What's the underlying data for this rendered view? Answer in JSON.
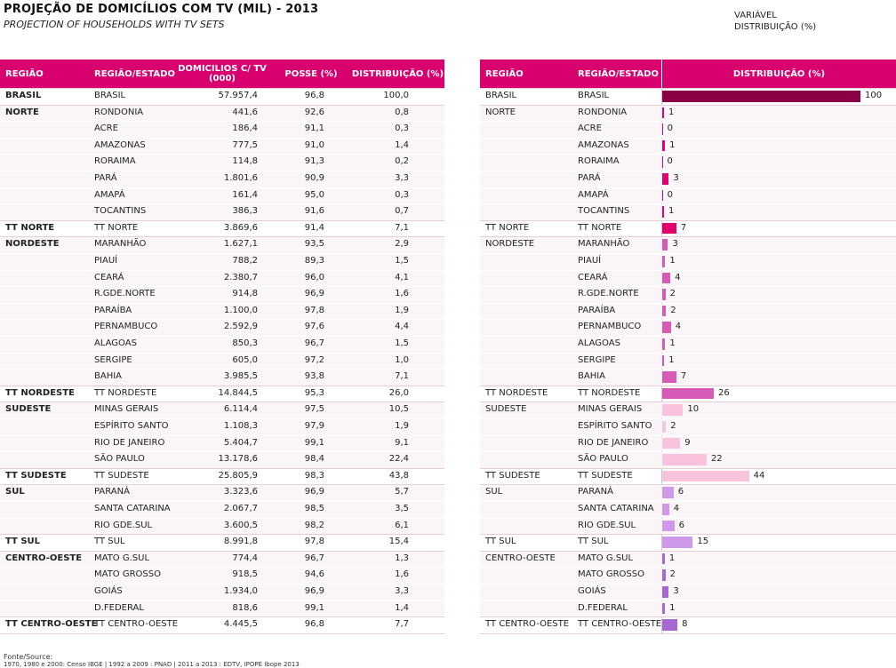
{
  "header": {
    "title": "PROJEÇÃO DE DOMICÍLIOS COM TV (MIL) - 2013",
    "subtitle": "PROJECTION OF HOUSEHOLDS WITH TV SETS",
    "variable_label": "VARIÁVEL",
    "variable_value": "DISTRIBUIÇÃO (%)"
  },
  "table": {
    "columns": [
      "REGIÃO",
      "REGIÃO/ESTADO",
      "DOMICILIOS C/ TV\n(000)",
      "POSSE (%)",
      "DISTRIBUIÇÃO (%)"
    ],
    "right_columns": [
      "REGIÃO",
      "REGIÃO/ESTADO",
      "DISTRIBUIÇÃO (%)"
    ]
  },
  "chart_data": {
    "type": "bar",
    "orientation": "horizontal",
    "title": "PROJEÇÃO DE DOMICÍLIOS COM TV (MIL) - 2013",
    "subtitle": "PROJECTION OF HOUSEHOLDS WITH TV SETS",
    "value_label": "DISTRIBUIÇÃO (%)",
    "xlim": [
      0,
      100
    ],
    "rows": [
      {
        "region": "BRASIL",
        "state": "BRASIL",
        "households": "57.957,4",
        "ownership": "96,8",
        "distribution": "100,0",
        "bar_value": 100,
        "bar_label": "100",
        "color": "#8a0045",
        "total": true,
        "start": true
      },
      {
        "region": "NORTE",
        "state": "RONDONIA",
        "households": "441,6",
        "ownership": "92,6",
        "distribution": "0,8",
        "bar_value": 0.8,
        "bar_label": "1",
        "color": "#e0006e",
        "start": true
      },
      {
        "region": "",
        "state": "ACRE",
        "households": "186,4",
        "ownership": "91,1",
        "distribution": "0,3",
        "bar_value": 0.3,
        "bar_label": "0",
        "color": "#e0006e"
      },
      {
        "region": "",
        "state": "AMAZONAS",
        "households": "777,5",
        "ownership": "91,0",
        "distribution": "1,4",
        "bar_value": 1.4,
        "bar_label": "1",
        "color": "#e0006e"
      },
      {
        "region": "",
        "state": "RORAIMA",
        "households": "114,8",
        "ownership": "91,3",
        "distribution": "0,2",
        "bar_value": 0.2,
        "bar_label": "0",
        "color": "#e0006e"
      },
      {
        "region": "",
        "state": "PARÁ",
        "households": "1.801,6",
        "ownership": "90,9",
        "distribution": "3,3",
        "bar_value": 3.3,
        "bar_label": "3",
        "color": "#e0006e"
      },
      {
        "region": "",
        "state": "AMAPÁ",
        "households": "161,4",
        "ownership": "95,0",
        "distribution": "0,3",
        "bar_value": 0.3,
        "bar_label": "0",
        "color": "#e0006e"
      },
      {
        "region": "",
        "state": "TOCANTINS",
        "households": "386,3",
        "ownership": "91,6",
        "distribution": "0,7",
        "bar_value": 0.7,
        "bar_label": "1",
        "color": "#e0006e"
      },
      {
        "region": "TT NORTE",
        "state": "TT NORTE",
        "households": "3.869,6",
        "ownership": "91,4",
        "distribution": "7,1",
        "bar_value": 7.1,
        "bar_label": "7",
        "color": "#e0006e",
        "total": true,
        "start": true
      },
      {
        "region": "NORDESTE",
        "state": "MARANHÃO",
        "households": "1.627,1",
        "ownership": "93,5",
        "distribution": "2,9",
        "bar_value": 2.9,
        "bar_label": "3",
        "color": "#d65ab6",
        "start": true
      },
      {
        "region": "",
        "state": "PIAUÍ",
        "households": "788,2",
        "ownership": "89,3",
        "distribution": "1,5",
        "bar_value": 1.5,
        "bar_label": "1",
        "color": "#d65ab6"
      },
      {
        "region": "",
        "state": "CEARÁ",
        "households": "2.380,7",
        "ownership": "96,0",
        "distribution": "4,1",
        "bar_value": 4.1,
        "bar_label": "4",
        "color": "#d65ab6"
      },
      {
        "region": "",
        "state": "R.GDE.NORTE",
        "households": "914,8",
        "ownership": "96,9",
        "distribution": "1,6",
        "bar_value": 1.6,
        "bar_label": "2",
        "color": "#d65ab6"
      },
      {
        "region": "",
        "state": "PARAÍBA",
        "households": "1.100,0",
        "ownership": "97,8",
        "distribution": "1,9",
        "bar_value": 1.9,
        "bar_label": "2",
        "color": "#d65ab6"
      },
      {
        "region": "",
        "state": "PERNAMBUCO",
        "households": "2.592,9",
        "ownership": "97,6",
        "distribution": "4,4",
        "bar_value": 4.4,
        "bar_label": "4",
        "color": "#d65ab6"
      },
      {
        "region": "",
        "state": "ALAGOAS",
        "households": "850,3",
        "ownership": "96,7",
        "distribution": "1,5",
        "bar_value": 1.5,
        "bar_label": "1",
        "color": "#d65ab6"
      },
      {
        "region": "",
        "state": "SERGIPE",
        "households": "605,0",
        "ownership": "97,2",
        "distribution": "1,0",
        "bar_value": 1.0,
        "bar_label": "1",
        "color": "#d65ab6"
      },
      {
        "region": "",
        "state": "BAHIA",
        "households": "3.985,5",
        "ownership": "93,8",
        "distribution": "7,1",
        "bar_value": 7.1,
        "bar_label": "7",
        "color": "#d65ab6"
      },
      {
        "region": "TT NORDESTE",
        "state": "TT NORDESTE",
        "households": "14.844,5",
        "ownership": "95,3",
        "distribution": "26,0",
        "bar_value": 26.0,
        "bar_label": "26",
        "color": "#d65ab6",
        "total": true,
        "start": true
      },
      {
        "region": "SUDESTE",
        "state": "MINAS GERAIS",
        "households": "6.114,4",
        "ownership": "97,5",
        "distribution": "10,5",
        "bar_value": 10.5,
        "bar_label": "10",
        "color": "#f9c2dd",
        "start": true
      },
      {
        "region": "",
        "state": "ESPÍRITO SANTO",
        "households": "1.108,3",
        "ownership": "97,9",
        "distribution": "1,9",
        "bar_value": 1.9,
        "bar_label": "2",
        "color": "#f9c2dd"
      },
      {
        "region": "",
        "state": "RIO DE JANEIRO",
        "households": "5.404,7",
        "ownership": "99,1",
        "distribution": "9,1",
        "bar_value": 9.1,
        "bar_label": "9",
        "color": "#f9c2dd"
      },
      {
        "region": "",
        "state": "SÃO PAULO",
        "households": "13.178,6",
        "ownership": "98,4",
        "distribution": "22,4",
        "bar_value": 22.4,
        "bar_label": "22",
        "color": "#f9c2dd"
      },
      {
        "region": "TT SUDESTE",
        "state": "TT SUDESTE",
        "households": "25.805,9",
        "ownership": "98,3",
        "distribution": "43,8",
        "bar_value": 43.8,
        "bar_label": "44",
        "color": "#f9c2dd",
        "total": true,
        "start": true
      },
      {
        "region": "SUL",
        "state": "PARANÁ",
        "households": "3.323,6",
        "ownership": "96,9",
        "distribution": "5,7",
        "bar_value": 5.7,
        "bar_label": "6",
        "color": "#cd99e8",
        "start": true
      },
      {
        "region": "",
        "state": "SANTA CATARINA",
        "households": "2.067,7",
        "ownership": "98,5",
        "distribution": "3,5",
        "bar_value": 3.5,
        "bar_label": "4",
        "color": "#cd99e8"
      },
      {
        "region": "",
        "state": "RIO GDE.SUL",
        "households": "3.600,5",
        "ownership": "98,2",
        "distribution": "6,1",
        "bar_value": 6.1,
        "bar_label": "6",
        "color": "#cd99e8"
      },
      {
        "region": "TT SUL",
        "state": "TT SUL",
        "households": "8.991,8",
        "ownership": "97,8",
        "distribution": "15,4",
        "bar_value": 15.4,
        "bar_label": "15",
        "color": "#cd99e8",
        "total": true,
        "start": true
      },
      {
        "region": "CENTRO-OESTE",
        "state": "MATO G.SUL",
        "households": "774,4",
        "ownership": "96,7",
        "distribution": "1,3",
        "bar_value": 1.3,
        "bar_label": "1",
        "color": "#a768d4",
        "start": true
      },
      {
        "region": "",
        "state": "MATO GROSSO",
        "households": "918,5",
        "ownership": "94,6",
        "distribution": "1,6",
        "bar_value": 1.6,
        "bar_label": "2",
        "color": "#a768d4"
      },
      {
        "region": "",
        "state": "GOIÁS",
        "households": "1.934,0",
        "ownership": "96,9",
        "distribution": "3,3",
        "bar_value": 3.3,
        "bar_label": "3",
        "color": "#a768d4"
      },
      {
        "region": "",
        "state": "D.FEDERAL",
        "households": "818,6",
        "ownership": "99,1",
        "distribution": "1,4",
        "bar_value": 1.4,
        "bar_label": "1",
        "color": "#a768d4"
      },
      {
        "region": "TT CENTRO-OESTE",
        "state": "TT CENTRO-OESTE",
        "households": "4.445,5",
        "ownership": "96,8",
        "distribution": "7,7",
        "bar_value": 7.7,
        "bar_label": "8",
        "color": "#a768d4",
        "total": true,
        "start": true
      }
    ]
  },
  "footer": {
    "source_label": "Fonte/Source:",
    "source_text": "1970, 1980 e 2000: Censo IBGE | 1992 a 2009 : PNAD | 2011 a 2013 : EDTV, IPOPE Ibope 2013"
  }
}
